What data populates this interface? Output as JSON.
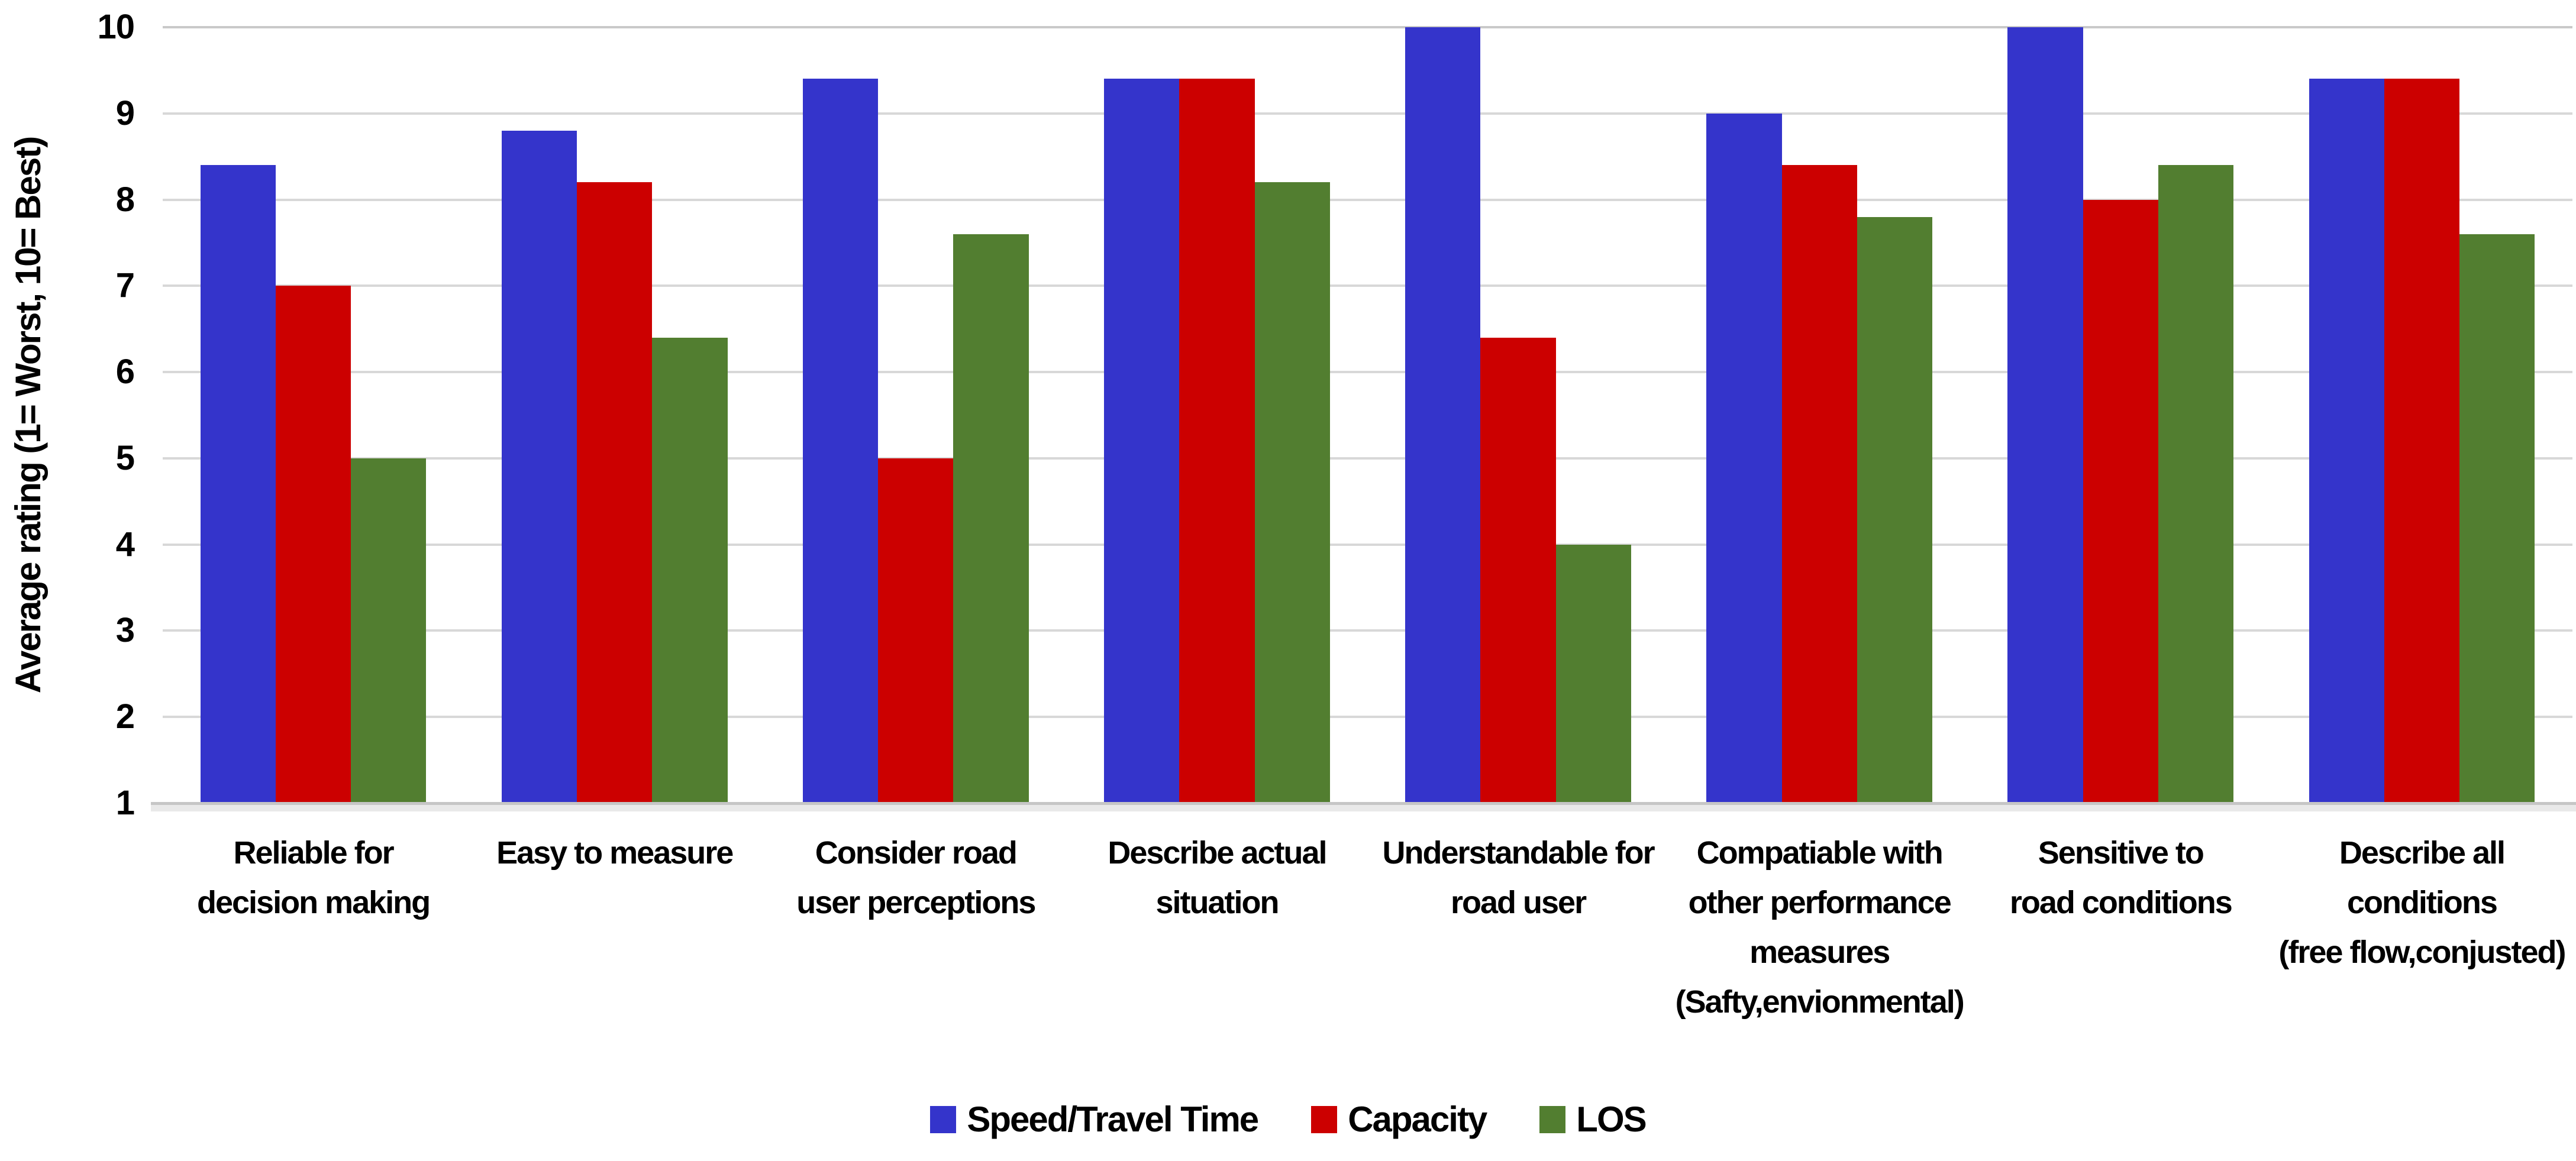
{
  "chart_data": {
    "type": "bar",
    "title": "",
    "xlabel": "",
    "ylabel": "Average rating (1= Worst, 10= Best)",
    "ylim": [
      1,
      10
    ],
    "yticks": [
      1,
      2,
      3,
      4,
      5,
      6,
      7,
      8,
      9,
      10
    ],
    "grid": true,
    "legend_position": "bottom",
    "categories": [
      "Reliable for\ndecision making",
      "Easy to measure",
      "Consider road\nuser perceptions",
      "Describe actual\nsituation",
      "Understandable for\nroad user",
      "Compatiable with\nother performance\nmeasures\n(Safty,envionmental)",
      "Sensitive to\nroad conditions",
      "Describe all\nconditions\n(free flow,conjusted)"
    ],
    "series": [
      {
        "name": "Speed/Travel Time",
        "color": "#3434CB",
        "values": [
          8.4,
          8.8,
          9.4,
          9.4,
          10,
          9,
          10,
          9.4
        ]
      },
      {
        "name": "Capacity",
        "color": "#CC0000",
        "values": [
          7,
          8.2,
          5,
          9.4,
          6.4,
          8.4,
          8,
          9.4
        ]
      },
      {
        "name": "LOS",
        "color": "#527E30",
        "values": [
          5,
          6.4,
          7.6,
          8.2,
          4,
          7.8,
          8.4,
          7.6
        ]
      }
    ]
  },
  "style": {
    "grid_color": "#D8D8D8",
    "top_grid_color": "#C9C9C9",
    "axis_line_color": "#C6C6C6",
    "axis_shadow_color": "#E9E9E9",
    "text_color": "#000000",
    "background": "#FFFFFF"
  }
}
